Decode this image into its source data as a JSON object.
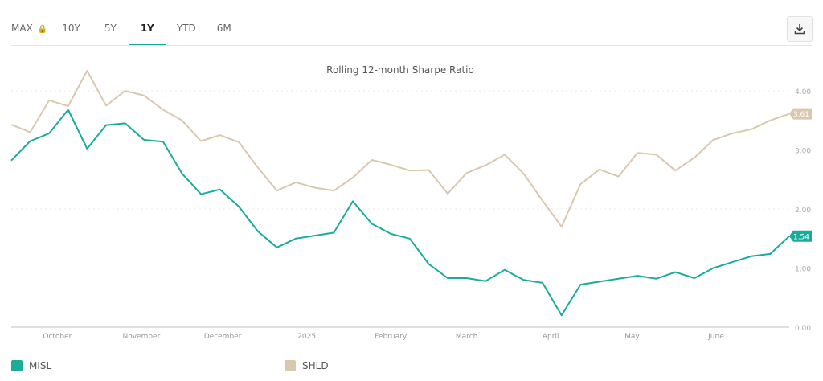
{
  "toolbar": {
    "ranges": [
      {
        "label": "MAX",
        "locked": true
      },
      {
        "label": "10Y"
      },
      {
        "label": "5Y"
      },
      {
        "label": "1Y",
        "active": true
      },
      {
        "label": "YTD"
      },
      {
        "label": "6M"
      }
    ],
    "download_icon": "download-icon"
  },
  "colors": {
    "accent": "#13a89a",
    "misl": "#1aab9b",
    "shld": "#d9c8ad"
  },
  "chart_data": {
    "type": "line",
    "title": "Rolling 12-month Sharpe Ratio",
    "ylim": [
      0,
      4.0
    ],
    "yticks": [
      "0.00",
      "1.00",
      "2.00",
      "3.00",
      "4.00"
    ],
    "ytick_values": [
      0,
      1,
      2,
      3,
      4
    ],
    "xticks": [
      {
        "label": "October",
        "date": "2024-10-01"
      },
      {
        "label": "November",
        "date": "2024-11-01"
      },
      {
        "label": "December",
        "date": "2024-12-01"
      },
      {
        "label": "2025",
        "date": "2025-01-01"
      },
      {
        "label": "February",
        "date": "2025-02-01"
      },
      {
        "label": "March",
        "date": "2025-03-01"
      },
      {
        "label": "April",
        "date": "2025-04-01"
      },
      {
        "label": "May",
        "date": "2025-05-01"
      },
      {
        "label": "June",
        "date": "2025-06-01"
      }
    ],
    "grid": true,
    "legend": "bottom-left",
    "x": [
      "2024-09-14",
      "2024-09-21",
      "2024-09-28",
      "2024-10-05",
      "2024-10-12",
      "2024-10-19",
      "2024-10-26",
      "2024-11-02",
      "2024-11-09",
      "2024-11-16",
      "2024-11-23",
      "2024-11-30",
      "2024-12-07",
      "2024-12-14",
      "2024-12-21",
      "2024-12-28",
      "2025-01-04",
      "2025-01-11",
      "2025-01-18",
      "2025-01-25",
      "2025-02-01",
      "2025-02-08",
      "2025-02-15",
      "2025-02-22",
      "2025-03-01",
      "2025-03-08",
      "2025-03-15",
      "2025-03-22",
      "2025-03-29",
      "2025-04-05",
      "2025-04-12",
      "2025-04-19",
      "2025-04-26",
      "2025-05-03",
      "2025-05-10",
      "2025-05-17",
      "2025-05-24",
      "2025-05-31",
      "2025-06-07",
      "2025-06-14",
      "2025-06-21",
      "2025-06-28"
    ],
    "series": [
      {
        "name": "MISL",
        "last_label": "1.54",
        "values": [
          2.82,
          3.15,
          3.28,
          3.68,
          3.02,
          3.42,
          3.45,
          3.17,
          3.14,
          2.6,
          2.25,
          2.33,
          2.04,
          1.62,
          1.35,
          1.5,
          1.55,
          1.6,
          2.13,
          1.75,
          1.58,
          1.5,
          1.07,
          0.83,
          0.83,
          0.78,
          0.97,
          0.8,
          0.75,
          0.2,
          0.72,
          0.77,
          0.82,
          0.87,
          0.82,
          0.93,
          0.83,
          1.0,
          1.1,
          1.2,
          1.24,
          1.54
        ]
      },
      {
        "name": "SHLD",
        "last_label": "3.61",
        "values": [
          3.43,
          3.3,
          3.84,
          3.74,
          4.34,
          3.75,
          4.0,
          3.92,
          3.68,
          3.5,
          3.15,
          3.25,
          3.13,
          2.7,
          2.31,
          2.45,
          2.36,
          2.31,
          2.53,
          2.83,
          2.75,
          2.65,
          2.66,
          2.26,
          2.61,
          2.74,
          2.92,
          2.6,
          2.14,
          1.7,
          2.42,
          2.67,
          2.55,
          2.95,
          2.92,
          2.65,
          2.87,
          3.17,
          3.28,
          3.35,
          3.5,
          3.61
        ]
      }
    ]
  }
}
